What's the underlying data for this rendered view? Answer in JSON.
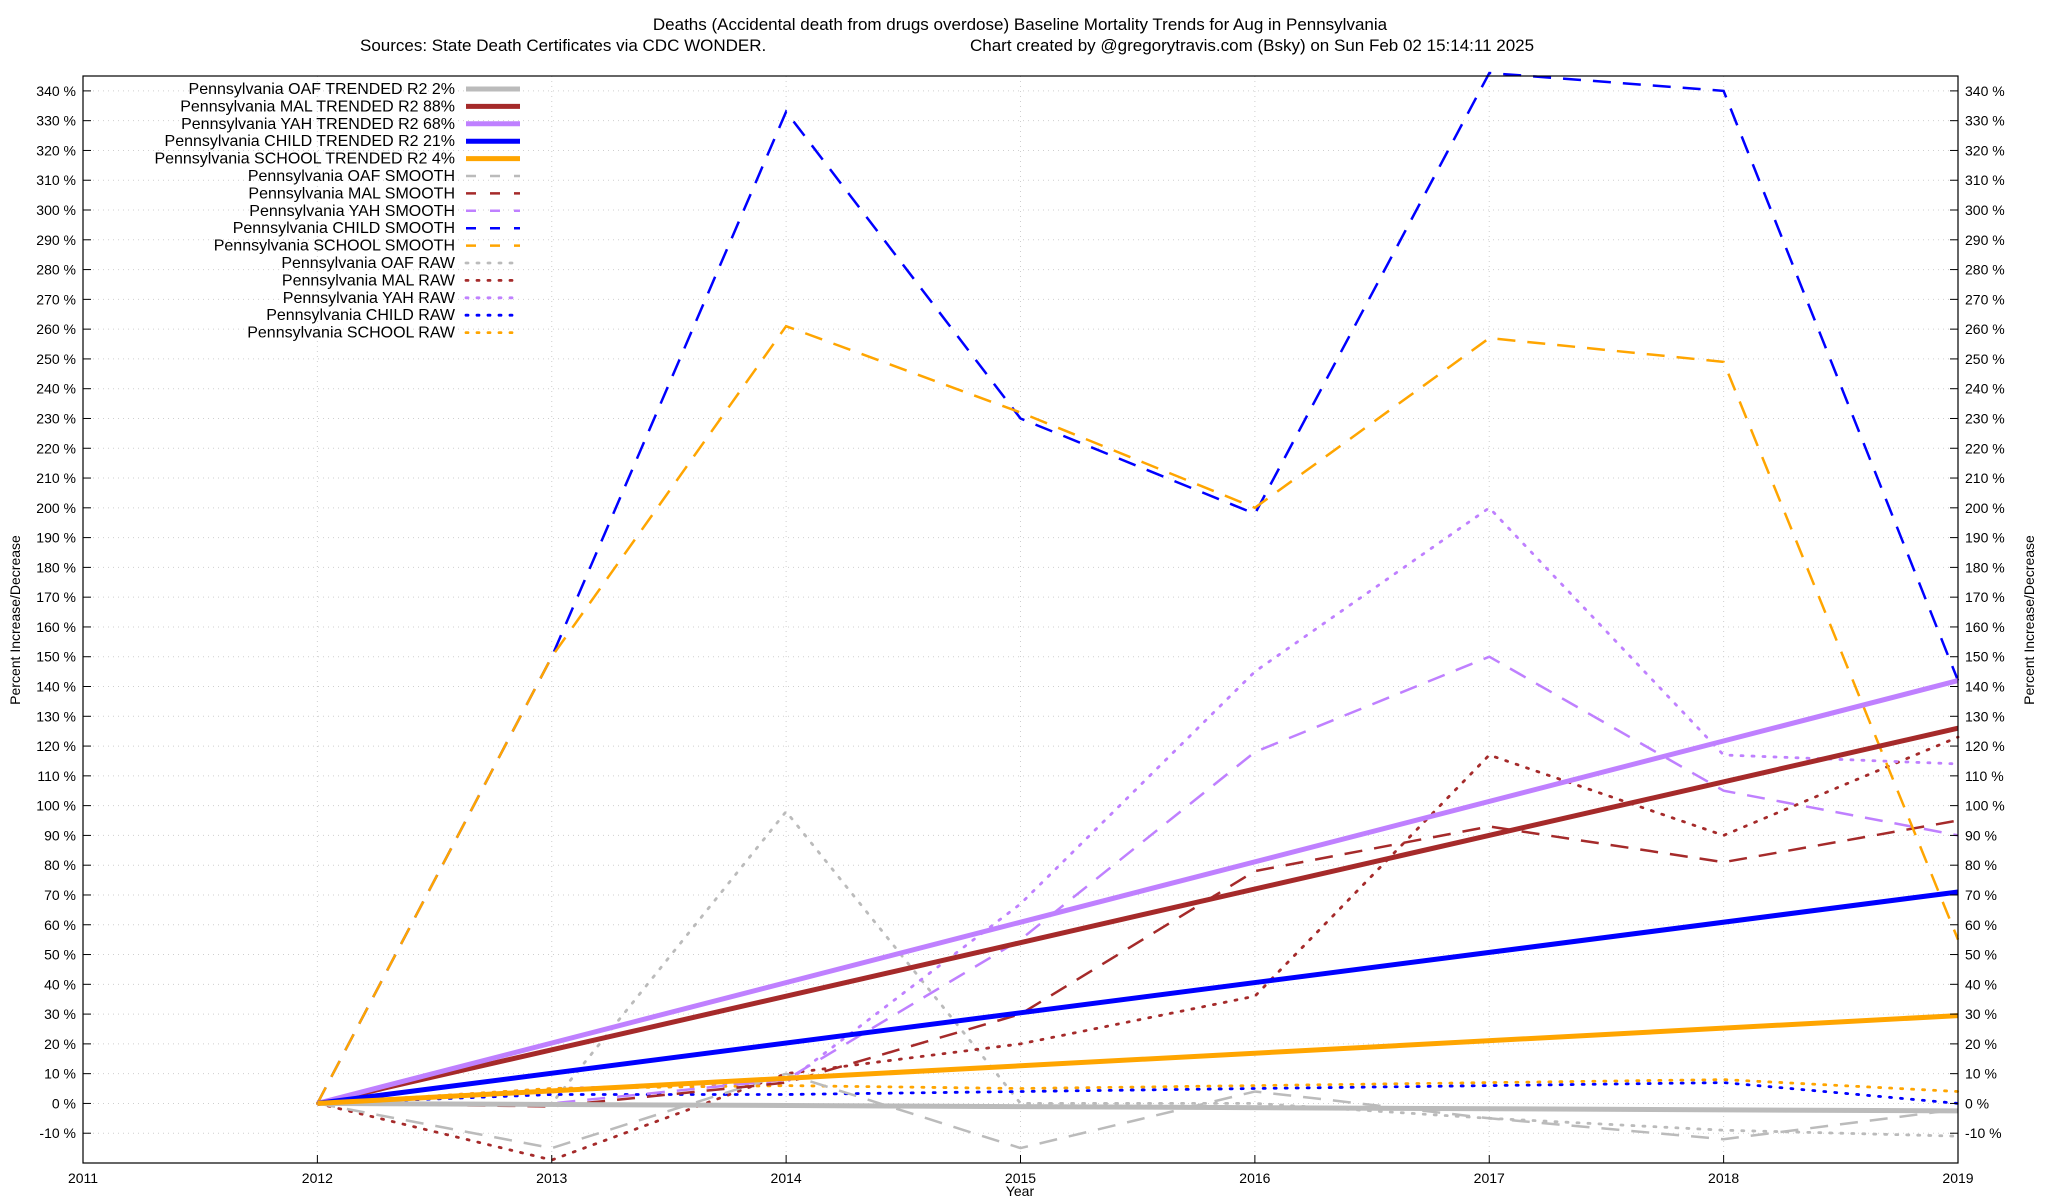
{
  "chart_data": {
    "type": "line",
    "title": "Deaths (Accidental death from drugs overdose)  Baseline Mortality Trends for Aug in Pennsylvania",
    "subtitle_left": "Sources: State Death Certificates via CDC WONDER.",
    "subtitle_right": "Chart created by @gregorytravis.com (Bsky) on Sun Feb 02 15:14:11 2025",
    "xlabel": "Year",
    "ylabel": "Percent Increase/Decrease",
    "xlim": [
      2011,
      2019
    ],
    "ylim": [
      -20,
      345
    ],
    "xticks": [
      "2011",
      "2012",
      "2013",
      "2014",
      "2015",
      "2016",
      "2017",
      "2018",
      "2019"
    ],
    "yticks": [
      "-10 %",
      "0 %",
      "10 %",
      "20 %",
      "30 %",
      "40 %",
      "50 %",
      "60 %",
      "70 %",
      "80 %",
      "90 %",
      "100 %",
      "110 %",
      "120 %",
      "130 %",
      "140 %",
      "150 %",
      "160 %",
      "170 %",
      "180 %",
      "190 %",
      "200 %",
      "210 %",
      "220 %",
      "230 %",
      "240 %",
      "250 %",
      "260 %",
      "270 %",
      "280 %",
      "290 %",
      "300 %",
      "310 %",
      "320 %",
      "330 %",
      "340 %"
    ],
    "grid": true,
    "legend_position": "top-left",
    "colors": {
      "OAF": "#bbbbbb",
      "MAL": "#a52a2a",
      "YAH": "#bf80ff",
      "CHILD": "#0000ff",
      "SCHOOL": "#ffa500"
    },
    "x": [
      2012,
      2013,
      2014,
      2015,
      2016,
      2017,
      2018,
      2019
    ],
    "series": [
      {
        "name": "Pennsylvania OAF TRENDED R2  2%",
        "group": "OAF",
        "style": "trend",
        "values": [
          0,
          null,
          null,
          null,
          null,
          null,
          null,
          -2.5
        ]
      },
      {
        "name": "Pennsylvania MAL TRENDED R2  88%",
        "group": "MAL",
        "style": "trend",
        "values": [
          0,
          null,
          null,
          null,
          null,
          null,
          null,
          126
        ]
      },
      {
        "name": "Pennsylvania YAH TRENDED R2  68%",
        "group": "YAH",
        "style": "trend",
        "values": [
          0,
          null,
          null,
          null,
          null,
          null,
          null,
          142
        ]
      },
      {
        "name": "Pennsylvania CHILD TRENDED R2  21%",
        "group": "CHILD",
        "style": "trend",
        "values": [
          0,
          null,
          null,
          null,
          null,
          null,
          null,
          71
        ]
      },
      {
        "name": "Pennsylvania SCHOOL TRENDED R2  4%",
        "group": "SCHOOL",
        "style": "trend",
        "values": [
          0,
          null,
          null,
          null,
          null,
          null,
          null,
          29.5
        ]
      },
      {
        "name": "Pennsylvania OAF SMOOTH",
        "group": "OAF",
        "style": "smooth",
        "values": [
          0,
          -15,
          10,
          -15,
          4,
          -5,
          -12,
          -2
        ]
      },
      {
        "name": "Pennsylvania MAL SMOOTH",
        "group": "MAL",
        "style": "smooth",
        "values": [
          0,
          -1,
          7,
          30,
          78,
          93,
          81,
          95
        ]
      },
      {
        "name": "Pennsylvania YAH SMOOTH",
        "group": "YAH",
        "style": "smooth",
        "values": [
          0,
          0,
          8,
          55,
          118,
          150,
          105,
          90
        ]
      },
      {
        "name": "Pennsylvania CHILD SMOOTH",
        "group": "CHILD",
        "style": "smooth",
        "values": [
          0,
          150,
          333,
          230,
          198,
          346,
          340,
          142
        ]
      },
      {
        "name": "Pennsylvania SCHOOL SMOOTH",
        "group": "SCHOOL",
        "style": "smooth",
        "values": [
          0,
          150,
          261,
          232,
          200,
          257,
          249,
          55
        ]
      },
      {
        "name": "Pennsylvania OAF RAW",
        "group": "OAF",
        "style": "raw",
        "values": [
          0,
          0,
          98,
          0,
          0,
          -5,
          -9,
          -11
        ]
      },
      {
        "name": "Pennsylvania MAL RAW",
        "group": "MAL",
        "style": "raw",
        "values": [
          0,
          -19,
          10,
          20,
          36,
          117,
          90,
          123
        ]
      },
      {
        "name": "Pennsylvania YAH RAW",
        "group": "YAH",
        "style": "raw",
        "values": [
          0,
          5,
          7,
          67,
          145,
          200,
          117,
          114
        ]
      },
      {
        "name": "Pennsylvania CHILD RAW",
        "group": "CHILD",
        "style": "raw",
        "values": [
          0,
          3,
          3,
          4,
          5,
          6,
          7,
          0
        ]
      },
      {
        "name": "Pennsylvania SCHOOL RAW",
        "group": "SCHOOL",
        "style": "raw",
        "values": [
          0,
          5,
          6,
          5,
          6,
          7,
          8,
          4
        ]
      }
    ]
  }
}
